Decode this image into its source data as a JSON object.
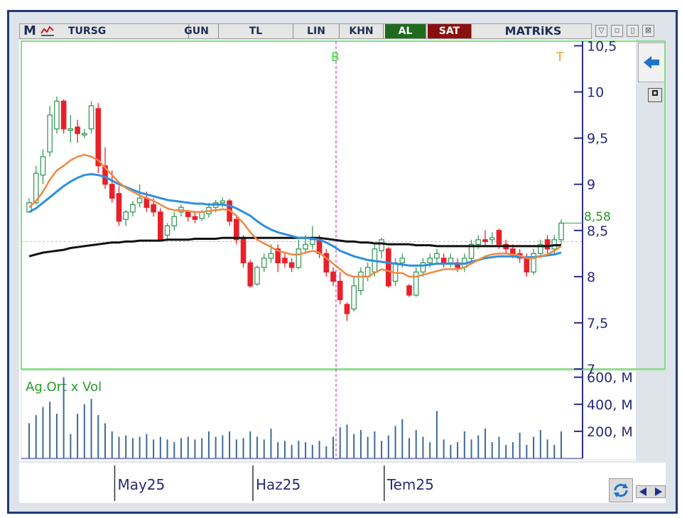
{
  "toolbar": {
    "logo": "M",
    "symbol": "TURSG",
    "period": "GUN",
    "currency": "TL",
    "scale": "LIN",
    "khn": "KHN",
    "buy": "AL",
    "sell": "SAT",
    "brand": "MATRiKS"
  },
  "window_buttons": [
    "▽",
    "▫",
    "▯",
    "⊠"
  ],
  "icons": {
    "back": "arrow-left-icon",
    "toggle": "square-icon",
    "refresh": "refresh-icon",
    "scroll": "scroll-arrows-icon"
  },
  "colors": {
    "bull": "#3a9a5c",
    "bear": "#e8202a",
    "ema_short": "#f08840",
    "ema_mid": "#2e8fe0",
    "ema_long": "#111111",
    "volume": "#3d6a96",
    "marker_line": "#d040c8",
    "panel_border": "#80e080"
  },
  "chart_data": [
    {
      "type": "candlestick",
      "markers": [
        {
          "label": "B",
          "color": "#3ad83a"
        },
        {
          "label": "T",
          "color": "#f0a020"
        }
      ],
      "last_price_label": "8,58",
      "reference_level": 8.38,
      "y_ticks": [
        "7",
        "7,5",
        "8",
        "8,5",
        "9",
        "9,5",
        "10",
        "10,5"
      ],
      "ylim": [
        7,
        10.55
      ],
      "x_tick_labels": [
        "May25",
        "Haz25",
        "Tem25"
      ],
      "x_tick_index": [
        13,
        33,
        52
      ],
      "candles": [
        [
          8.7,
          8.8,
          8.7,
          8.85
        ],
        [
          8.8,
          9.12,
          8.78,
          9.2
        ],
        [
          9.1,
          9.3,
          9.0,
          9.38
        ],
        [
          9.35,
          9.75,
          9.3,
          9.85
        ],
        [
          9.6,
          9.9,
          9.55,
          9.95
        ],
        [
          9.9,
          9.6,
          9.55,
          9.92
        ],
        [
          9.6,
          9.6,
          9.45,
          9.75
        ],
        [
          9.62,
          9.55,
          9.45,
          9.7
        ],
        [
          9.55,
          9.55,
          9.5,
          9.6
        ],
        [
          9.6,
          9.85,
          9.55,
          9.9
        ],
        [
          9.82,
          9.2,
          9.12,
          9.88
        ],
        [
          9.2,
          9.0,
          8.95,
          9.4
        ],
        [
          9.0,
          8.85,
          8.8,
          9.15
        ],
        [
          8.9,
          8.6,
          8.55,
          8.98
        ],
        [
          8.62,
          8.7,
          8.55,
          8.72
        ],
        [
          8.7,
          8.78,
          8.65,
          8.82
        ],
        [
          8.8,
          8.85,
          8.75,
          9.0
        ],
        [
          8.85,
          8.75,
          8.7,
          8.92
        ],
        [
          8.78,
          8.7,
          8.65,
          8.85
        ],
        [
          8.7,
          8.4,
          8.38,
          8.74
        ],
        [
          8.45,
          8.55,
          8.4,
          8.58
        ],
        [
          8.55,
          8.65,
          8.5,
          8.7
        ],
        [
          8.7,
          8.75,
          8.65,
          8.78
        ],
        [
          8.7,
          8.65,
          8.6,
          8.72
        ],
        [
          8.65,
          8.62,
          8.58,
          8.7
        ],
        [
          8.63,
          8.7,
          8.6,
          8.72
        ],
        [
          8.68,
          8.75,
          8.64,
          8.8
        ],
        [
          8.75,
          8.8,
          8.7,
          8.83
        ],
        [
          8.8,
          8.82,
          8.75,
          8.86
        ],
        [
          8.82,
          8.6,
          8.55,
          8.84
        ],
        [
          8.62,
          8.4,
          8.35,
          8.65
        ],
        [
          8.42,
          8.15,
          8.1,
          8.45
        ],
        [
          8.15,
          7.9,
          7.88,
          8.18
        ],
        [
          7.92,
          8.1,
          7.9,
          8.12
        ],
        [
          8.1,
          8.2,
          8.05,
          8.25
        ],
        [
          8.2,
          8.25,
          8.15,
          8.35
        ],
        [
          8.3,
          8.15,
          8.05,
          8.35
        ],
        [
          8.2,
          8.15,
          8.1,
          8.25
        ],
        [
          8.15,
          8.1,
          8.05,
          8.2
        ],
        [
          8.1,
          8.3,
          8.08,
          8.4
        ],
        [
          8.3,
          8.35,
          8.25,
          8.45
        ],
        [
          8.35,
          8.4,
          8.3,
          8.55
        ],
        [
          8.4,
          8.25,
          8.2,
          8.45
        ],
        [
          8.25,
          8.05,
          8.0,
          8.3
        ],
        [
          8.05,
          7.95,
          7.9,
          8.1
        ],
        [
          7.95,
          7.75,
          7.7,
          8.05
        ],
        [
          7.7,
          7.6,
          7.52,
          7.72
        ],
        [
          7.65,
          7.9,
          7.62,
          8.0
        ],
        [
          7.85,
          8.05,
          7.8,
          8.1
        ],
        [
          8.0,
          8.1,
          7.95,
          8.15
        ],
        [
          8.05,
          8.3,
          8.0,
          8.35
        ],
        [
          8.28,
          8.4,
          8.2,
          8.42
        ],
        [
          8.3,
          7.9,
          7.88,
          8.32
        ],
        [
          7.95,
          8.15,
          7.9,
          8.2
        ],
        [
          8.15,
          8.2,
          8.1,
          8.25
        ],
        [
          7.9,
          7.8,
          7.78,
          7.92
        ],
        [
          7.8,
          8.05,
          7.78,
          8.1
        ],
        [
          8.05,
          8.15,
          8.0,
          8.2
        ],
        [
          8.15,
          8.2,
          8.1,
          8.25
        ],
        [
          8.2,
          8.25,
          8.15,
          8.3
        ],
        [
          8.2,
          8.15,
          8.1,
          8.25
        ],
        [
          8.15,
          8.2,
          8.1,
          8.25
        ],
        [
          8.15,
          8.1,
          8.05,
          8.2
        ],
        [
          8.1,
          8.2,
          8.05,
          8.25
        ],
        [
          8.2,
          8.35,
          8.15,
          8.4
        ],
        [
          8.35,
          8.4,
          8.3,
          8.45
        ],
        [
          8.4,
          8.38,
          8.32,
          8.5
        ],
        [
          8.4,
          8.42,
          8.35,
          8.48
        ],
        [
          8.5,
          8.35,
          8.3,
          8.52
        ],
        [
          8.35,
          8.3,
          8.25,
          8.4
        ],
        [
          8.3,
          8.25,
          8.2,
          8.35
        ],
        [
          8.25,
          8.2,
          8.15,
          8.3
        ],
        [
          8.2,
          8.05,
          8.0,
          8.25
        ],
        [
          8.05,
          8.25,
          8.02,
          8.3
        ],
        [
          8.25,
          8.35,
          8.2,
          8.4
        ],
        [
          8.4,
          8.3,
          8.25,
          8.45
        ],
        [
          8.3,
          8.4,
          8.25,
          8.45
        ],
        [
          8.4,
          8.58,
          8.35,
          8.62
        ]
      ],
      "ema_short": [
        8.75,
        8.82,
        8.92,
        9.05,
        9.15,
        9.2,
        9.26,
        9.3,
        9.32,
        9.3,
        9.26,
        9.18,
        9.1,
        9.02,
        8.96,
        8.92,
        8.88,
        8.85,
        8.82,
        8.78,
        8.74,
        8.72,
        8.72,
        8.71,
        8.7,
        8.7,
        8.71,
        8.72,
        8.73,
        8.72,
        8.66,
        8.58,
        8.48,
        8.4,
        8.36,
        8.32,
        8.28,
        8.26,
        8.24,
        8.24,
        8.26,
        8.28,
        8.26,
        8.2,
        8.14,
        8.08,
        8.02,
        8.0,
        8.0,
        8.0,
        8.04,
        8.08,
        8.06,
        8.04,
        8.04,
        8.0,
        8.0,
        8.02,
        8.04,
        8.06,
        8.08,
        8.08,
        8.08,
        8.1,
        8.14,
        8.18,
        8.22,
        8.24,
        8.25,
        8.25,
        8.24,
        8.23,
        8.2,
        8.2,
        8.22,
        8.24,
        8.28,
        8.33
      ],
      "ema_mid": [
        8.7,
        8.74,
        8.8,
        8.86,
        8.92,
        8.98,
        9.03,
        9.07,
        9.1,
        9.11,
        9.1,
        9.08,
        9.04,
        9.0,
        8.97,
        8.94,
        8.91,
        8.89,
        8.87,
        8.85,
        8.83,
        8.82,
        8.81,
        8.8,
        8.79,
        8.79,
        8.78,
        8.78,
        8.78,
        8.77,
        8.74,
        8.7,
        8.66,
        8.6,
        8.55,
        8.51,
        8.48,
        8.46,
        8.44,
        8.42,
        8.42,
        8.41,
        8.4,
        8.37,
        8.33,
        8.28,
        8.25,
        8.22,
        8.2,
        8.18,
        8.17,
        8.16,
        8.15,
        8.14,
        8.13,
        8.12,
        8.12,
        8.12,
        8.13,
        8.14,
        8.14,
        8.14,
        8.14,
        8.14,
        8.16,
        8.18,
        8.2,
        8.21,
        8.22,
        8.22,
        8.22,
        8.21,
        8.21,
        8.21,
        8.22,
        8.23,
        8.24,
        8.26
      ],
      "ema_long": [
        8.22,
        8.24,
        8.26,
        8.27,
        8.28,
        8.29,
        8.31,
        8.32,
        8.33,
        8.34,
        8.35,
        8.36,
        8.37,
        8.37,
        8.38,
        8.38,
        8.39,
        8.39,
        8.39,
        8.39,
        8.4,
        8.4,
        8.4,
        8.4,
        8.41,
        8.41,
        8.41,
        8.41,
        8.42,
        8.42,
        8.42,
        8.42,
        8.42,
        8.42,
        8.42,
        8.42,
        8.42,
        8.42,
        8.42,
        8.42,
        8.42,
        8.42,
        8.42,
        8.41,
        8.4,
        8.39,
        8.38,
        8.38,
        8.37,
        8.37,
        8.36,
        8.36,
        8.35,
        8.35,
        8.35,
        8.35,
        8.34,
        8.34,
        8.34,
        8.33,
        8.33,
        8.33,
        8.33,
        8.33,
        8.33,
        8.33,
        8.33,
        8.33,
        8.33,
        8.33,
        8.33,
        8.33,
        8.33,
        8.33,
        8.33,
        8.33,
        8.34,
        8.34
      ]
    },
    {
      "type": "bar",
      "title": "Ag.Ort x Vol",
      "y_ticks": [
        "200, M",
        "400, M",
        "600, M"
      ],
      "ylim": [
        0,
        640
      ],
      "unit": "M",
      "values": [
        260,
        320,
        380,
        420,
        330,
        600,
        180,
        330,
        400,
        440,
        320,
        260,
        200,
        160,
        170,
        150,
        160,
        180,
        140,
        160,
        140,
        120,
        150,
        160,
        140,
        150,
        200,
        160,
        170,
        200,
        140,
        150,
        200,
        160,
        140,
        220,
        120,
        130,
        100,
        130,
        120,
        100,
        130,
        90,
        160,
        230,
        250,
        180,
        210,
        160,
        200,
        130,
        170,
        240,
        290,
        150,
        210,
        160,
        120,
        350,
        140,
        100,
        120,
        200,
        140,
        170,
        220,
        120,
        160,
        100,
        120,
        190,
        100,
        160,
        210,
        140,
        100,
        200
      ]
    }
  ]
}
